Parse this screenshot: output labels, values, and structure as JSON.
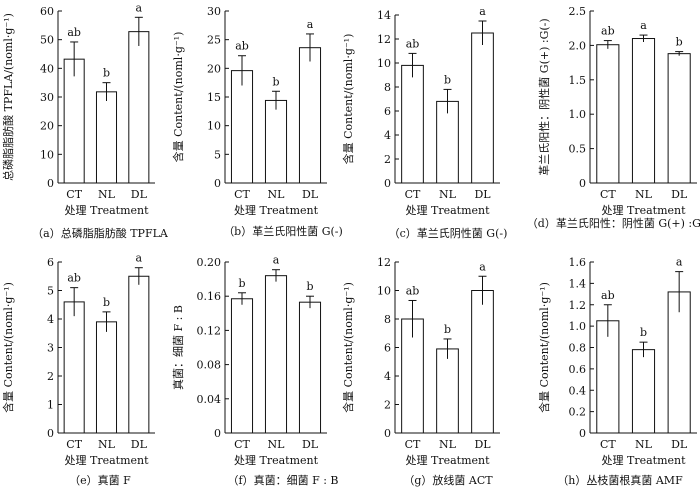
{
  "chart_data": [
    {
      "type": "bar",
      "categories": [
        "CT",
        "NL",
        "DL"
      ],
      "values": [
        43.2,
        31.8,
        52.8
      ],
      "errors": [
        6.0,
        3.2,
        5.0
      ],
      "significance": [
        "ab",
        "b",
        "a"
      ],
      "ylabel": "总磷脂脂肪酸 TPFLA/(noml·g⁻¹)",
      "xlabel": "处理 Treatment",
      "caption": "（a）总磷脂脂肪酸 TPFLA",
      "ylim": [
        0,
        60
      ],
      "yticks": [
        0,
        10,
        20,
        30,
        40,
        50,
        60
      ]
    },
    {
      "type": "bar",
      "categories": [
        "CT",
        "NL",
        "DL"
      ],
      "values": [
        19.6,
        14.4,
        23.6
      ],
      "errors": [
        2.6,
        1.6,
        2.4
      ],
      "significance": [
        "ab",
        "b",
        "a"
      ],
      "ylabel": "含量 Content/(noml·g⁻¹)",
      "xlabel": "处理 Treatment",
      "caption": "（b）革兰氏阳性菌 G(-)",
      "ylim": [
        0,
        30
      ],
      "yticks": [
        0,
        5,
        10,
        15,
        20,
        25,
        30
      ]
    },
    {
      "type": "bar",
      "categories": [
        "CT",
        "NL",
        "DL"
      ],
      "values": [
        9.8,
        6.8,
        12.5
      ],
      "errors": [
        1.0,
        1.0,
        1.0
      ],
      "significance": [
        "ab",
        "b",
        "a"
      ],
      "ylabel": "含量 Content/(noml·g⁻¹)",
      "xlabel": "处理 Treatment",
      "caption": "（c）革兰氏阴性菌 G(-)",
      "ylim": [
        0,
        14
      ],
      "yticks": [
        0,
        2,
        4,
        6,
        8,
        10,
        12,
        14
      ]
    },
    {
      "type": "bar",
      "categories": [
        "CT",
        "NL",
        "DL"
      ],
      "values": [
        2.01,
        2.1,
        1.88
      ],
      "errors": [
        0.06,
        0.05,
        0.03
      ],
      "significance": [
        "ab",
        "a",
        "b"
      ],
      "ylabel": "革兰氏阳性：阴性菌 G(+) :G(-)",
      "xlabel": "处理 Treatment",
      "caption": "（d）革兰氏阳性：阴性菌 G(+) :G(-)",
      "ylim": [
        0,
        2.5
      ],
      "yticks": [
        0,
        0.5,
        1.0,
        1.5,
        2.0,
        2.5
      ]
    },
    {
      "type": "bar",
      "categories": [
        "CT",
        "NL",
        "DL"
      ],
      "values": [
        4.6,
        3.9,
        5.5
      ],
      "errors": [
        0.5,
        0.35,
        0.3
      ],
      "significance": [
        "ab",
        "b",
        "a"
      ],
      "ylabel": "含量 Content/(noml·g⁻¹)",
      "xlabel": "处理 Treatment",
      "caption": "（e）真菌 F",
      "ylim": [
        0,
        6
      ],
      "yticks": [
        0,
        1,
        2,
        3,
        4,
        5,
        6
      ]
    },
    {
      "type": "bar",
      "categories": [
        "CT",
        "NL",
        "DL"
      ],
      "values": [
        0.157,
        0.184,
        0.153
      ],
      "errors": [
        0.007,
        0.007,
        0.007
      ],
      "significance": [
        "b",
        "a",
        "b"
      ],
      "ylabel": "真菌：细菌 F : B",
      "xlabel": "处理 Treatment",
      "caption": "（f）真菌：细菌 F : B",
      "ylim": [
        0,
        0.2
      ],
      "yticks": [
        0,
        0.04,
        0.08,
        0.12,
        0.16,
        0.2
      ]
    },
    {
      "type": "bar",
      "categories": [
        "CT",
        "NL",
        "DL"
      ],
      "values": [
        8.0,
        5.9,
        10.0
      ],
      "errors": [
        1.3,
        0.7,
        1.0
      ],
      "significance": [
        "ab",
        "b",
        "a"
      ],
      "ylabel": "含量 Content/(noml·g⁻¹)",
      "xlabel": "处理 Treatment",
      "caption": "（g）放线菌 ACT",
      "ylim": [
        0,
        12
      ],
      "yticks": [
        0,
        2,
        4,
        6,
        8,
        10,
        12
      ]
    },
    {
      "type": "bar",
      "categories": [
        "CT",
        "NL",
        "DL"
      ],
      "values": [
        1.05,
        0.78,
        1.32
      ],
      "errors": [
        0.15,
        0.07,
        0.19
      ],
      "significance": [
        "ab",
        "b",
        "a"
      ],
      "ylabel": "含量 Content/(noml·g⁻¹)",
      "xlabel": "处理 Treatment",
      "caption": "（h）丛枝菌根真菌 AMF",
      "ylim": [
        0,
        1.6
      ],
      "yticks": [
        0,
        0.2,
        0.4,
        0.6,
        0.8,
        1.0,
        1.2,
        1.4,
        1.6
      ]
    }
  ]
}
